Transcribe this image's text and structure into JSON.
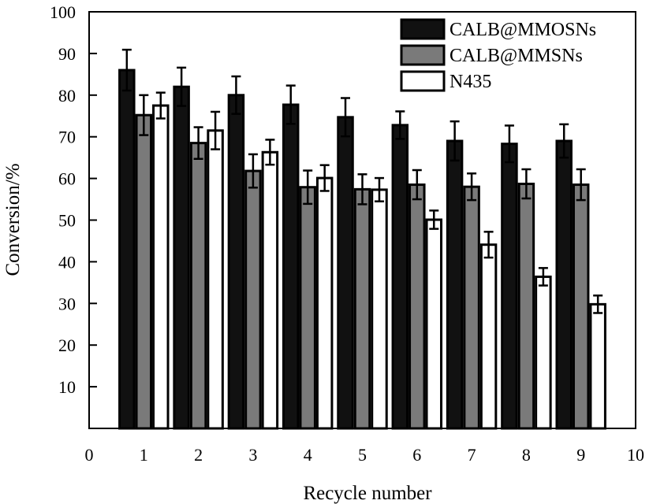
{
  "chart_data": {
    "type": "bar",
    "xlabel": "Recycle number",
    "ylabel": "Conversion/%",
    "xlim": [
      0,
      10
    ],
    "ylim": [
      0,
      100
    ],
    "x_ticks": [
      0,
      1,
      2,
      3,
      4,
      5,
      6,
      7,
      8,
      9,
      10
    ],
    "y_ticks": [
      10,
      20,
      30,
      40,
      50,
      60,
      70,
      80,
      90,
      100
    ],
    "categories": [
      1,
      2,
      3,
      4,
      5,
      6,
      7,
      8,
      9
    ],
    "grid": false,
    "legend_position": "top-right",
    "error_bars": true,
    "series": [
      {
        "name": "CALB@MMOSNs",
        "color": "#111111",
        "values": [
          86,
          82,
          80,
          77.7,
          74.7,
          72.8,
          69,
          68.3,
          69
        ],
        "errors": [
          4.9,
          4.6,
          4.5,
          4.6,
          4.6,
          3.3,
          4.7,
          4.4,
          4
        ]
      },
      {
        "name": "CALB@MMSNs",
        "color": "#7a7a7a",
        "values": [
          75.2,
          68.5,
          61.8,
          57.9,
          57.4,
          58.5,
          58,
          58.7,
          58.5
        ],
        "errors": [
          4.8,
          3.8,
          4,
          4,
          3.6,
          3.5,
          3.2,
          3.5,
          3.7
        ]
      },
      {
        "name": "N435",
        "color": "#ffffff",
        "values": [
          77.5,
          71.5,
          66.3,
          60.1,
          57.3,
          50.1,
          44.1,
          36.4,
          29.8
        ],
        "errors": [
          3.1,
          4.5,
          3,
          3.1,
          2.8,
          2.2,
          3.1,
          2.1,
          2.1
        ]
      }
    ]
  }
}
